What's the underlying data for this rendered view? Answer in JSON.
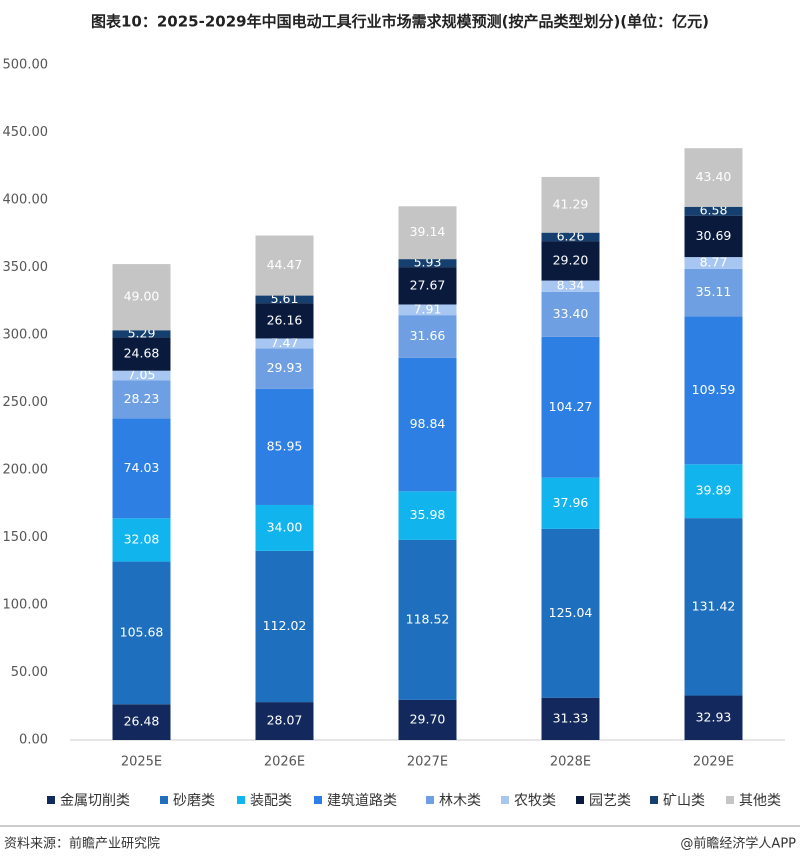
{
  "chart_data": {
    "type": "stacked-bar",
    "title": "图表10：2025-2029年中国电动工具行业市场需求规模预测(按产品类型划分)(单位：亿元)",
    "categories": [
      "2025E",
      "2026E",
      "2027E",
      "2028E",
      "2029E"
    ],
    "series": [
      {
        "name": "金属切削类",
        "color": "#13295e",
        "values": [
          26.48,
          28.07,
          29.7,
          31.33,
          32.93
        ],
        "value_labels": [
          "26.48",
          "28.07",
          "29.70",
          "31.33",
          "32.93"
        ]
      },
      {
        "name": "砂磨类",
        "color": "#1f6fbf",
        "values": [
          105.68,
          112.02,
          118.52,
          125.04,
          131.42
        ],
        "value_labels": [
          "105.68",
          "112.02",
          "118.52",
          "125.04",
          "131.42"
        ]
      },
      {
        "name": "装配类",
        "color": "#12b4ee",
        "values": [
          32.08,
          34.0,
          35.98,
          37.96,
          39.89
        ],
        "value_labels": [
          "32.08",
          "34.00",
          "35.98",
          "37.96",
          "39.89"
        ]
      },
      {
        "name": "建筑道路类",
        "color": "#2e7fe4",
        "values": [
          74.03,
          85.95,
          98.84,
          104.27,
          109.59
        ],
        "value_labels": [
          "74.03",
          "85.95",
          "98.84",
          "104.27",
          "109.59"
        ]
      },
      {
        "name": "林木类",
        "color": "#6f9fe3",
        "values": [
          28.23,
          29.93,
          31.66,
          33.4,
          35.11
        ],
        "value_labels": [
          "28.23",
          "29.93",
          "31.66",
          "33.40",
          "35.11"
        ]
      },
      {
        "name": "农牧类",
        "color": "#a7c6f2",
        "values": [
          7.05,
          7.47,
          7.91,
          8.34,
          8.77
        ],
        "value_labels": [
          "7.05",
          "7.47",
          "7.91",
          "8.34",
          "8.77"
        ]
      },
      {
        "name": "园艺类",
        "color": "#0a1a3d",
        "values": [
          24.68,
          26.16,
          27.67,
          29.2,
          30.69
        ],
        "value_labels": [
          "24.68",
          "26.16",
          "27.67",
          "29.20",
          "30.69"
        ]
      },
      {
        "name": "矿山类",
        "color": "#153f6e",
        "values": [
          5.29,
          5.61,
          5.93,
          6.26,
          6.58
        ],
        "value_labels": [
          "5.29",
          "5.61",
          "5.93",
          "6.26",
          "6.58"
        ]
      },
      {
        "name": "其他类",
        "color": "#c5c5c5",
        "values": [
          49.0,
          44.47,
          39.14,
          41.29,
          43.4
        ],
        "value_labels": [
          "49.00",
          "44.47",
          "39.14",
          "41.29",
          "43.40"
        ]
      }
    ],
    "ylim": [
      0,
      500
    ],
    "yticks": [
      {
        "value": 0,
        "label": "0.00"
      },
      {
        "value": 50,
        "label": "50.00"
      },
      {
        "value": 100,
        "label": "100.00"
      },
      {
        "value": 150,
        "label": "150.00"
      },
      {
        "value": 200,
        "label": "200.00"
      },
      {
        "value": 250,
        "label": "250.00"
      },
      {
        "value": 300,
        "label": "300.00"
      },
      {
        "value": 350,
        "label": "350.00"
      },
      {
        "value": 400,
        "label": "400.00"
      },
      {
        "value": 450,
        "label": "450.00"
      },
      {
        "value": 500,
        "label": "500.00"
      }
    ],
    "source": "资料来源：前瞻产业研究院",
    "credit": "@前瞻经济学人APP"
  }
}
